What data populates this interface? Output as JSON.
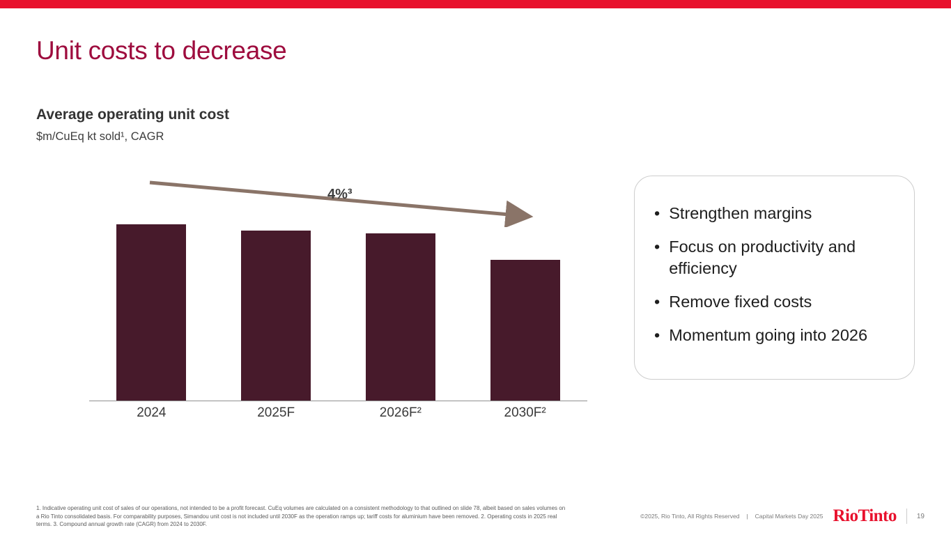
{
  "slide": {
    "title": "Unit costs to decrease",
    "chart_heading": "Average operating unit cost",
    "chart_subheading": "$m/CuEq kt sold¹, CAGR"
  },
  "chart_data": {
    "type": "bar",
    "title": "Average operating unit cost",
    "subtitle": "$m/CuEq kt sold¹, CAGR",
    "categories": [
      "2024",
      "2025F",
      "2026F²",
      "2030F²"
    ],
    "values": [
      100,
      96.5,
      95,
      80
    ],
    "xlabel": "",
    "ylabel": "",
    "ylim": [
      0,
      100
    ],
    "grid": false,
    "legend": "none",
    "annotation": "4%³",
    "annotation_meaning": "CAGR decline from 2024 to 2030F shown with downward arrow"
  },
  "bullets": {
    "items": [
      "Strengthen margins",
      "Focus on productivity and efficiency",
      "Remove fixed costs",
      "Momentum going into 2026"
    ]
  },
  "footer": {
    "footnote": "1. Indicative operating unit cost of sales of our operations, not intended to be a profit forecast. CuEq volumes are calculated on a consistent methodology to that outlined on slide 78, albeit based on  sales volumes on a Rio Tinto consolidated basis. For comparability purposes, Simandou unit cost is not included until 2030F as the operation ramps up; tariff costs for aluminium have been removed. 2. Operating costs in 2025 real terms. 3. Compound annual growth rate (CAGR) from 2024 to 2030F.",
    "copyright": "©2025, Rio Tinto, All Rights Reserved",
    "divider": "|",
    "event": "Capital Markets Day 2025",
    "logo": "RioTinto",
    "page_number": "19"
  },
  "colors": {
    "top_bar": "#e8112d",
    "title": "#9e0c3e",
    "bar": "#471a2b",
    "arrow": "#8a7468",
    "logo": "#e8112d"
  }
}
